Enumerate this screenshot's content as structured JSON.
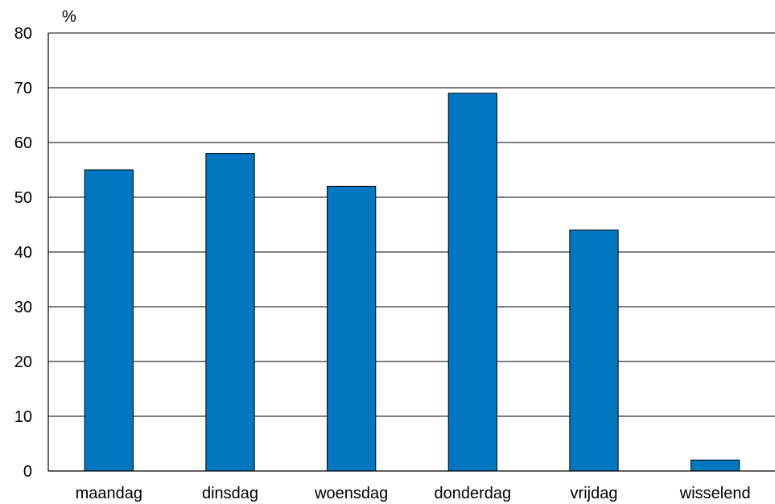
{
  "chart_data": {
    "type": "bar",
    "title": "",
    "xlabel": "",
    "ylabel": "%",
    "categories": [
      "maandag",
      "dinsdag",
      "woensdag",
      "donderdag",
      "vrijdag",
      "wisselend"
    ],
    "values": [
      55,
      58,
      52,
      69,
      44,
      2
    ],
    "ylim": [
      0,
      80
    ],
    "yticks": [
      "0",
      "10",
      "20",
      "30",
      "40",
      "50",
      "60",
      "70",
      "80"
    ],
    "grid": true,
    "legend": "none",
    "colors": {
      "bar": "#0077c0",
      "bar_outline": "#000000",
      "grid": "#000000",
      "axis": "#000000"
    }
  }
}
